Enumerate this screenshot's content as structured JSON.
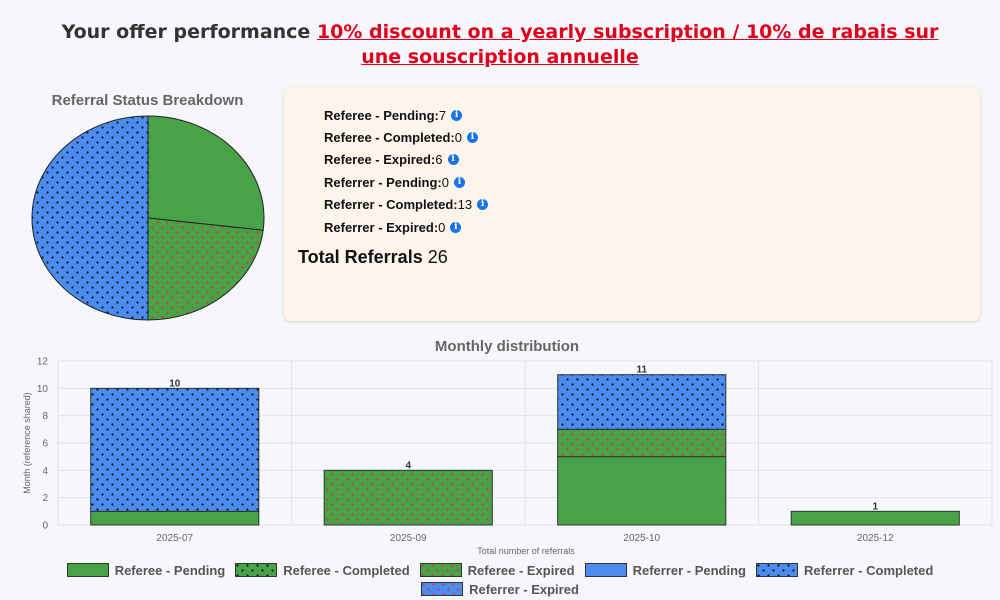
{
  "header": {
    "title_prefix": "Your offer performance ",
    "offer_link": "10% discount on a yearly subscription / 10% de rabais sur une souscription annuelle"
  },
  "colors": {
    "referee": "#48a348",
    "referrer": "#4a8cf0",
    "dots_completed": "#111111",
    "dots_expired": "#e0303a",
    "card_bg": "#fdf4ec"
  },
  "stats": {
    "items": [
      {
        "label": "Referee - Pending:",
        "value": "7"
      },
      {
        "label": "Referee - Completed:",
        "value": "0"
      },
      {
        "label": "Referee - Expired:",
        "value": "6"
      },
      {
        "label": "Referrer - Pending:",
        "value": "0"
      },
      {
        "label": "Referrer - Completed:",
        "value": "13"
      },
      {
        "label": "Referrer - Expired:",
        "value": "0"
      }
    ],
    "total_label": "Total Referrals",
    "total_value": "26"
  },
  "chart_data": [
    {
      "type": "pie",
      "title": "Referral Status Breakdown",
      "categories": [
        "Referee - Pending",
        "Referee - Completed",
        "Referee - Expired",
        "Referrer - Pending",
        "Referrer - Completed",
        "Referrer - Expired"
      ],
      "values": [
        7,
        0,
        6,
        0,
        13,
        0
      ]
    },
    {
      "type": "bar",
      "stacked": true,
      "title": "Monthly distribution",
      "xlabel": "Total number of referrals",
      "ylabel": "Month (reference shared)",
      "ylim": [
        0,
        12
      ],
      "yticks": [
        0,
        2,
        4,
        6,
        8,
        10,
        12
      ],
      "categories": [
        "2025-07",
        "2025-09",
        "2025-10",
        "2025-12"
      ],
      "series": [
        {
          "name": "Referee - Pending",
          "values": [
            1,
            0,
            5,
            1
          ]
        },
        {
          "name": "Referee - Completed",
          "values": [
            0,
            0,
            0,
            0
          ]
        },
        {
          "name": "Referee - Expired",
          "values": [
            0,
            4,
            2,
            0
          ]
        },
        {
          "name": "Referrer - Pending",
          "values": [
            0,
            0,
            0,
            0
          ]
        },
        {
          "name": "Referrer - Completed",
          "values": [
            9,
            0,
            4,
            0
          ]
        },
        {
          "name": "Referrer - Expired",
          "values": [
            0,
            0,
            0,
            0
          ]
        }
      ],
      "totals": [
        10,
        4,
        11,
        1
      ],
      "grid": true,
      "legend": "bottom"
    }
  ]
}
